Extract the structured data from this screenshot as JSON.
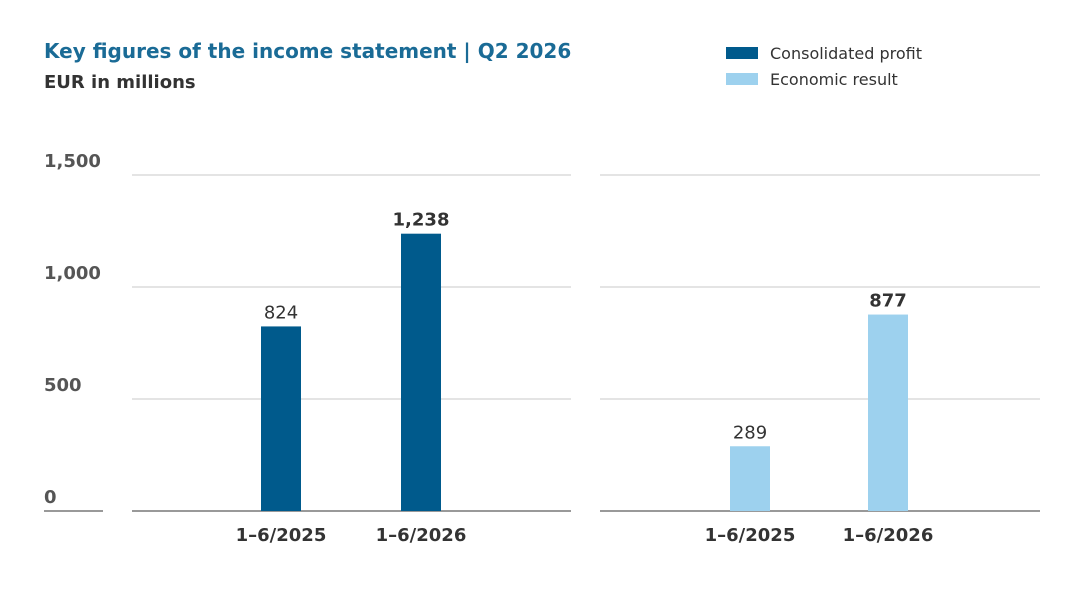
{
  "title": "Key figures of the income statement | Q2 2026",
  "subtitle": "EUR in millions",
  "legend": [
    {
      "label": "Consolidated profit",
      "color": "#005a8c"
    },
    {
      "label": "Economic result",
      "color": "#9dd1ee"
    }
  ],
  "colors": {
    "title": "#1a6b96",
    "grid": "#c8c8c8",
    "baseline": "#999999"
  },
  "chart_data": [
    {
      "type": "bar",
      "series_name": "Consolidated profit",
      "color": "#005a8c",
      "categories": [
        "1–6/2025",
        "1–6/2026"
      ],
      "values": [
        824,
        1238
      ],
      "value_labels": [
        "824",
        "1,238"
      ],
      "bold_values": [
        false,
        true
      ],
      "ylim": [
        0,
        1500
      ],
      "yticks": [
        0,
        500,
        1000,
        1500
      ],
      "ytick_labels": [
        "0",
        "500",
        "1,000",
        "1,500"
      ],
      "grid": true
    },
    {
      "type": "bar",
      "series_name": "Economic result",
      "color": "#9dd1ee",
      "categories": [
        "1–6/2025",
        "1–6/2026"
      ],
      "values": [
        289,
        877
      ],
      "value_labels": [
        "289",
        "877"
      ],
      "bold_values": [
        false,
        true
      ],
      "ylim": [
        0,
        1500
      ],
      "yticks": [
        0,
        500,
        1000,
        1500
      ],
      "grid": true
    }
  ]
}
